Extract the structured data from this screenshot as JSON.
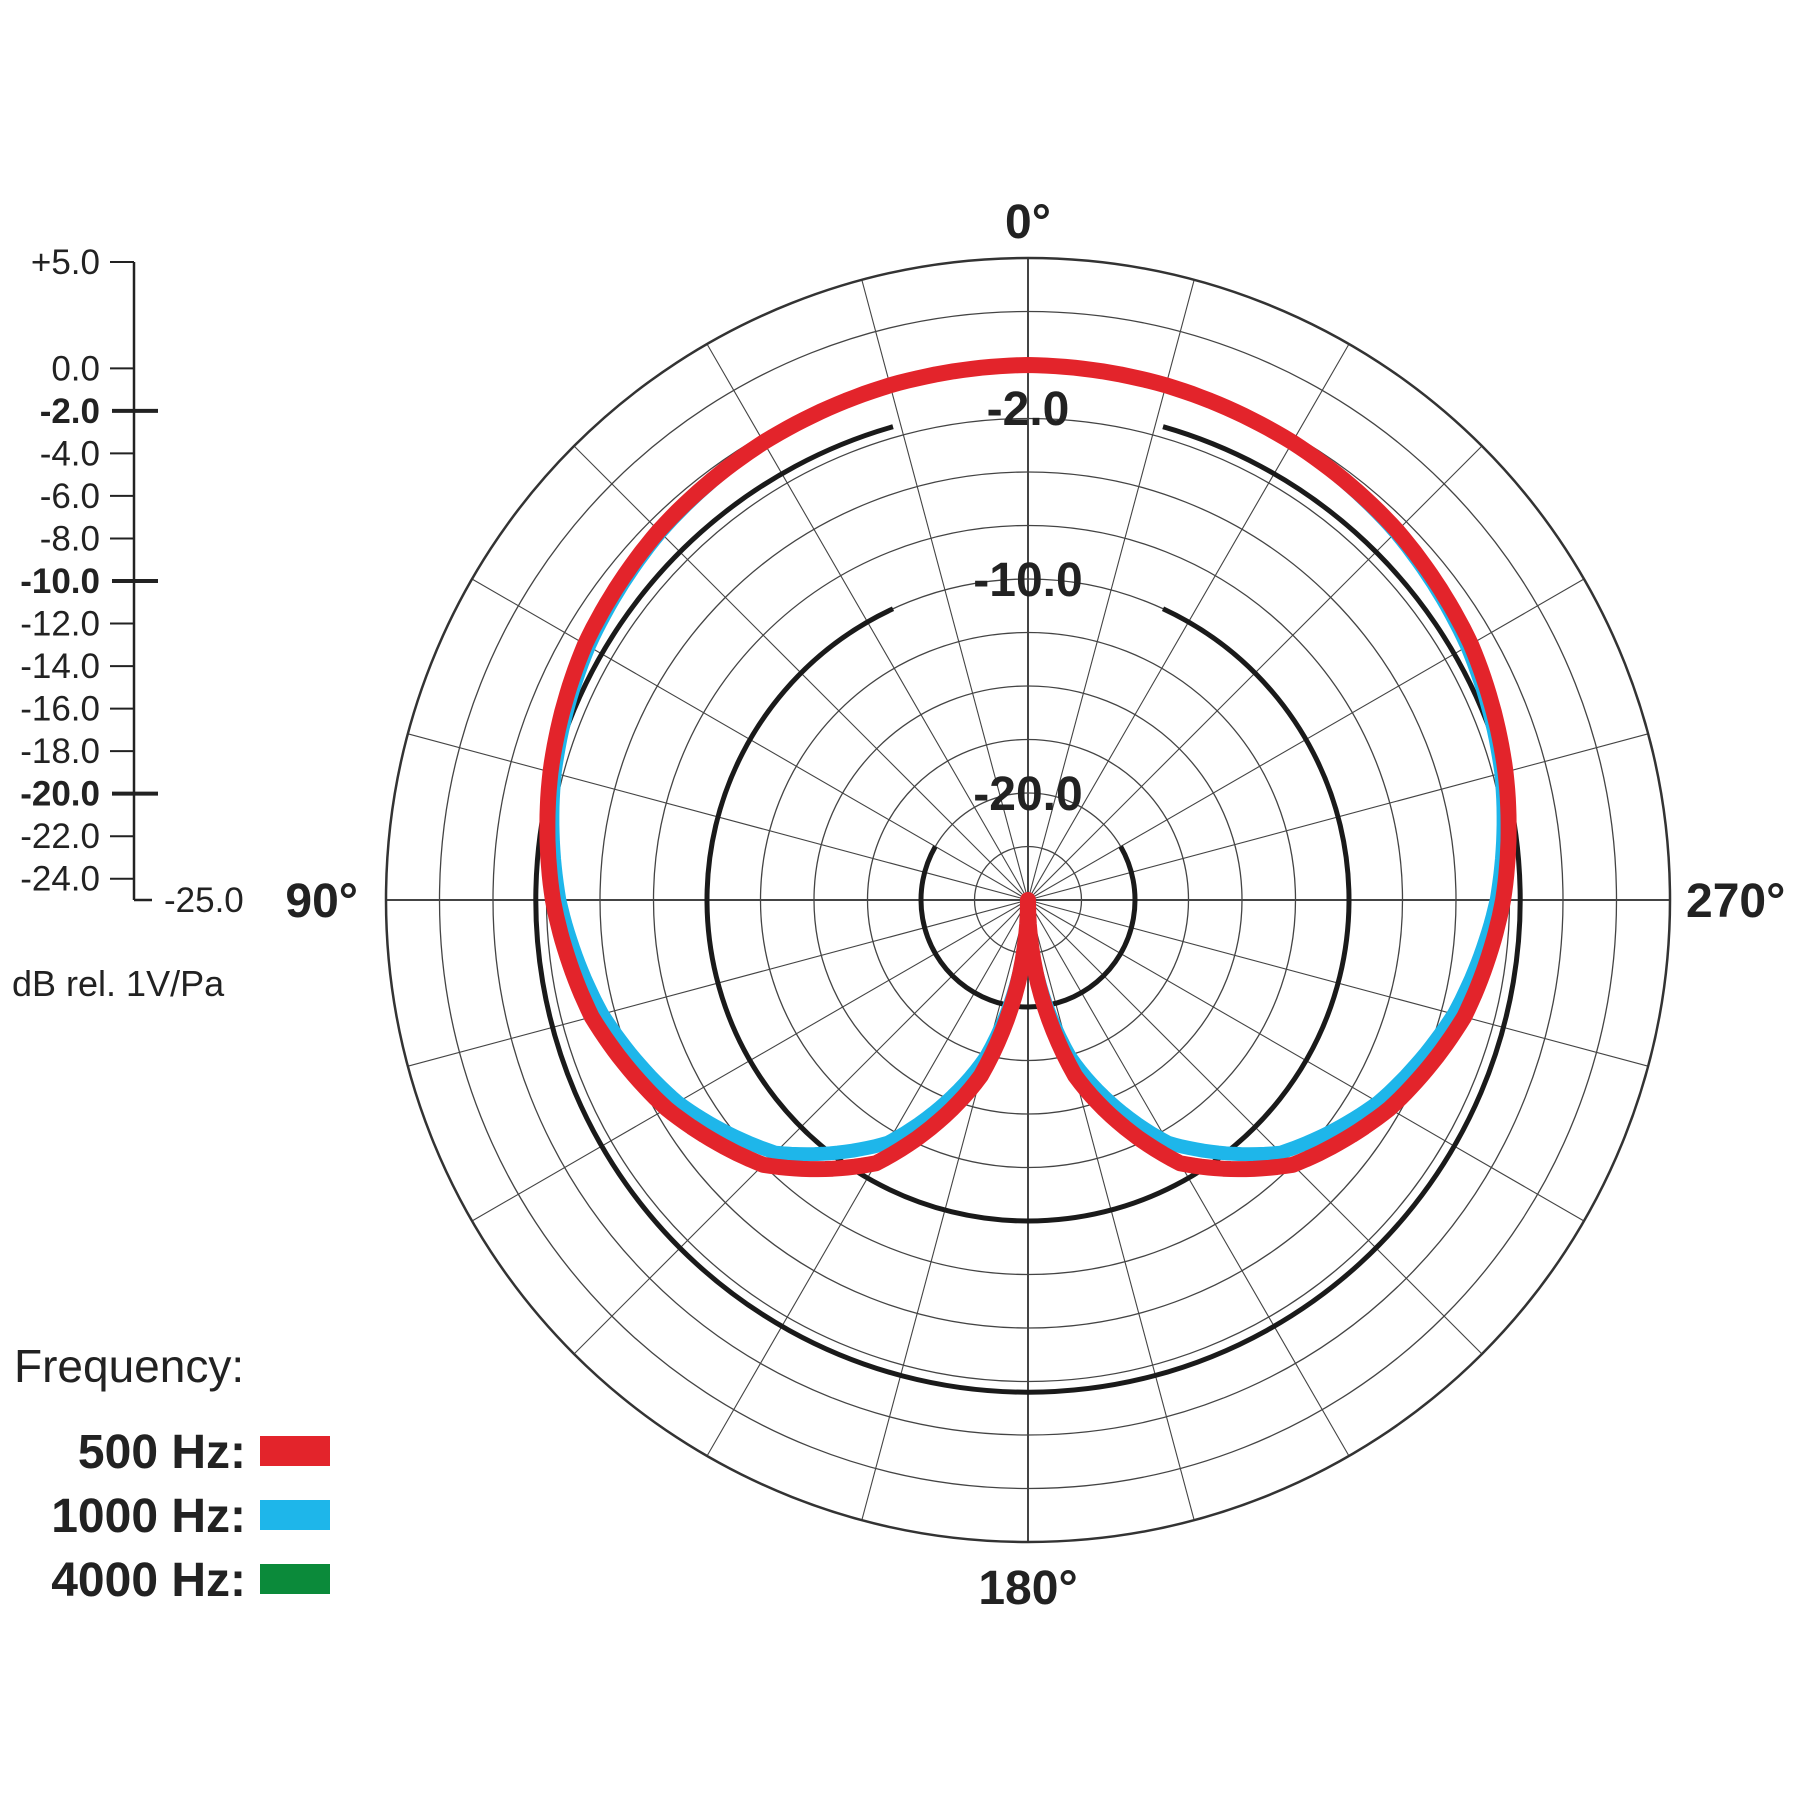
{
  "chart_data": {
    "type": "polar",
    "angle_labels": [
      {
        "angle": 0,
        "text": "0°"
      },
      {
        "angle": 90,
        "text": "90°"
      },
      {
        "angle": 180,
        "text": "180°"
      },
      {
        "angle": 270,
        "text": "270°"
      }
    ],
    "angle_step_deg": 15,
    "r_range_db": [
      -25,
      5
    ],
    "r_step_db": 2.5,
    "bold_rings": [
      {
        "db": -2,
        "label": "-2.0"
      },
      {
        "db": -10,
        "label": "-10.0"
      },
      {
        "db": -20,
        "label": "-20.0"
      }
    ],
    "scale": {
      "ticks": [
        {
          "value": 5,
          "label": "+5.0",
          "bold": false
        },
        {
          "value": 0,
          "label": "0.0",
          "bold": false
        },
        {
          "value": -2,
          "label": "-2.0",
          "bold": true
        },
        {
          "value": -4,
          "label": "-4.0",
          "bold": false
        },
        {
          "value": -6,
          "label": "-6.0",
          "bold": false
        },
        {
          "value": -8,
          "label": "-8.0",
          "bold": false
        },
        {
          "value": -10,
          "label": "-10.0",
          "bold": true
        },
        {
          "value": -12,
          "label": "-12.0",
          "bold": false
        },
        {
          "value": -14,
          "label": "-14.0",
          "bold": false
        },
        {
          "value": -16,
          "label": "-16.0",
          "bold": false
        },
        {
          "value": -18,
          "label": "-18.0",
          "bold": false
        },
        {
          "value": -20,
          "label": "-20.0",
          "bold": true
        },
        {
          "value": -22,
          "label": "-22.0",
          "bold": false
        },
        {
          "value": -24,
          "label": "-24.0",
          "bold": false
        }
      ],
      "bottom_label": "-25.0",
      "unit": "dB rel. 1V/Pa"
    },
    "legend_title": "Frequency:",
    "series": [
      {
        "name": "4000 Hz",
        "legend": "4000 Hz:",
        "color": "#0b8a3a",
        "width": 8,
        "angles": [
          0,
          15,
          30,
          45,
          60,
          75,
          90,
          105,
          120,
          135,
          150,
          165,
          180
        ],
        "db": [
          0,
          -0.1,
          -0.3,
          -0.7,
          -1.3,
          -2.1,
          -3.1,
          -4.4,
          -6.1,
          -8.3,
          -11.9,
          -17.4,
          -25
        ]
      },
      {
        "name": "1000 Hz",
        "legend": "1000 Hz:",
        "color": "#1eb6ea",
        "width": 14,
        "angles": [
          0,
          15,
          30,
          45,
          60,
          75,
          90,
          105,
          120,
          135,
          150,
          165,
          180
        ],
        "db": [
          0,
          -0.1,
          -0.3,
          -0.7,
          -1.3,
          -2.1,
          -3.1,
          -4.4,
          -6.1,
          -8.3,
          -11.9,
          -17.4,
          -25
        ]
      },
      {
        "name": "500 Hz",
        "legend": "500 Hz:",
        "color": "#e3242b",
        "width": 16,
        "angles": [
          0,
          15,
          30,
          45,
          60,
          75,
          90,
          105,
          120,
          135,
          150,
          165,
          180
        ],
        "db": [
          0,
          -0.1,
          -0.3,
          -0.6,
          -1.1,
          -1.9,
          -2.8,
          -3.9,
          -5.5,
          -7.5,
          -10.8,
          -16.5,
          -25
        ]
      }
    ]
  }
}
